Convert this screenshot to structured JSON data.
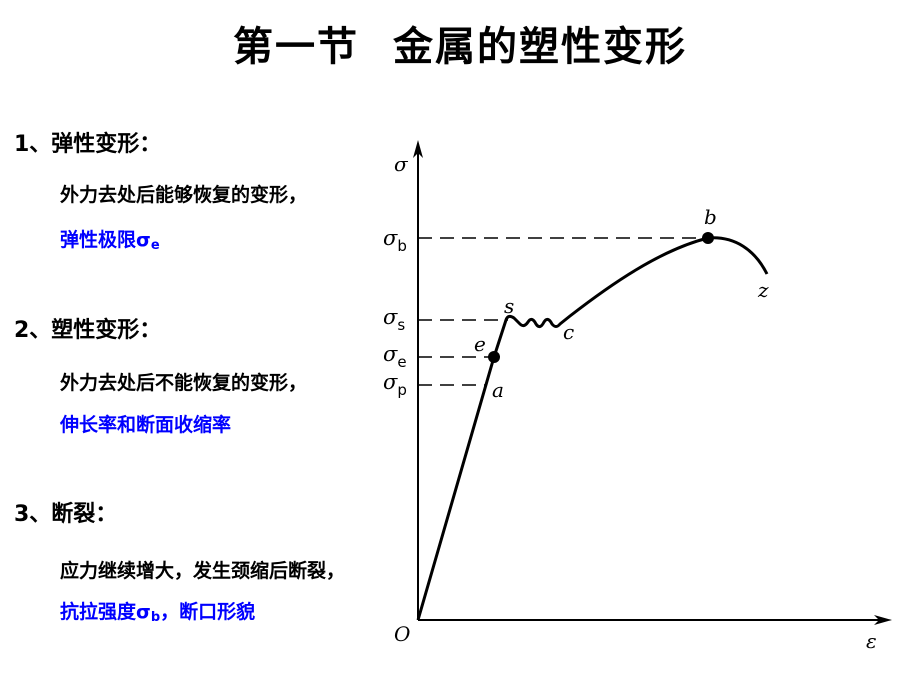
{
  "title": {
    "part1": "第一节",
    "part2": "金属的塑性变形"
  },
  "sections": [
    {
      "heading": "1、弹性变形：",
      "desc": "外力去处后能够恢复的变形，",
      "highlight": "弹性极限σ",
      "highlight_sub": "e",
      "highlight_after": ""
    },
    {
      "heading": "2、塑性变形：",
      "desc": "外力去处后不能恢复的变形，",
      "highlight": "伸长率和断面收缩率",
      "highlight_sub": "",
      "highlight_after": ""
    },
    {
      "heading": "3、断裂：",
      "desc": "应力继续增大，发生颈缩后断裂，",
      "highlight": "抗拉强度σ",
      "highlight_sub": "b",
      "highlight_after": "，断口形貌"
    }
  ],
  "diagram": {
    "y_axis_label": "σ",
    "x_axis_label": "ε",
    "origin_label": "O",
    "level_symbol": "σ",
    "level_subs": {
      "b": "b",
      "s": "s",
      "e": "e",
      "p": "p"
    },
    "points": {
      "a": "a",
      "e": "e",
      "s": "s",
      "c": "c",
      "b": "b",
      "z": "z"
    }
  },
  "colors": {
    "highlight": "#0000ff",
    "text": "#000000"
  }
}
